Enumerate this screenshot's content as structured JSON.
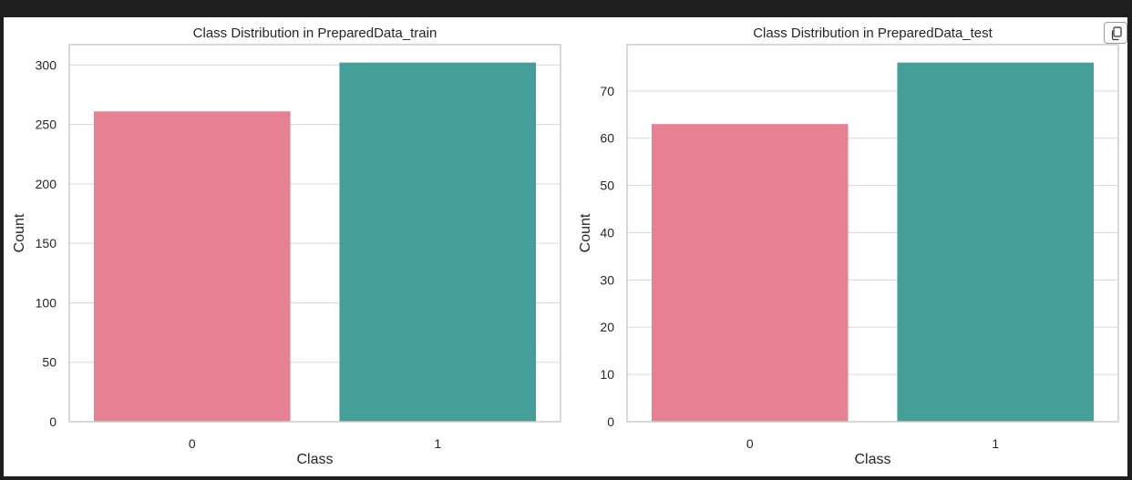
{
  "colors": {
    "page_background": "#1e1e1e",
    "figure_background": "#ffffff",
    "grid": "#dadada",
    "spine": "#cccccc",
    "text": "#262626",
    "class_0": "#e68193",
    "class_1": "#469e98"
  },
  "icons": {
    "copy": "copy-icon"
  },
  "chart_data": [
    {
      "type": "bar",
      "title": "Class Distribution in PreparedData_train",
      "xlabel": "Class",
      "ylabel": "Count",
      "categories": [
        "0",
        "1"
      ],
      "values": [
        261,
        302
      ],
      "ylim": [
        0,
        317.1
      ],
      "yticks": [
        0,
        50,
        100,
        150,
        200,
        250,
        300
      ],
      "grid": true
    },
    {
      "type": "bar",
      "title": "Class Distribution in PreparedData_test",
      "xlabel": "Class",
      "ylabel": "Count",
      "categories": [
        "0",
        "1"
      ],
      "values": [
        63,
        76
      ],
      "ylim": [
        0,
        79.8
      ],
      "yticks": [
        0,
        10,
        20,
        30,
        40,
        50,
        60,
        70
      ],
      "grid": true
    }
  ]
}
